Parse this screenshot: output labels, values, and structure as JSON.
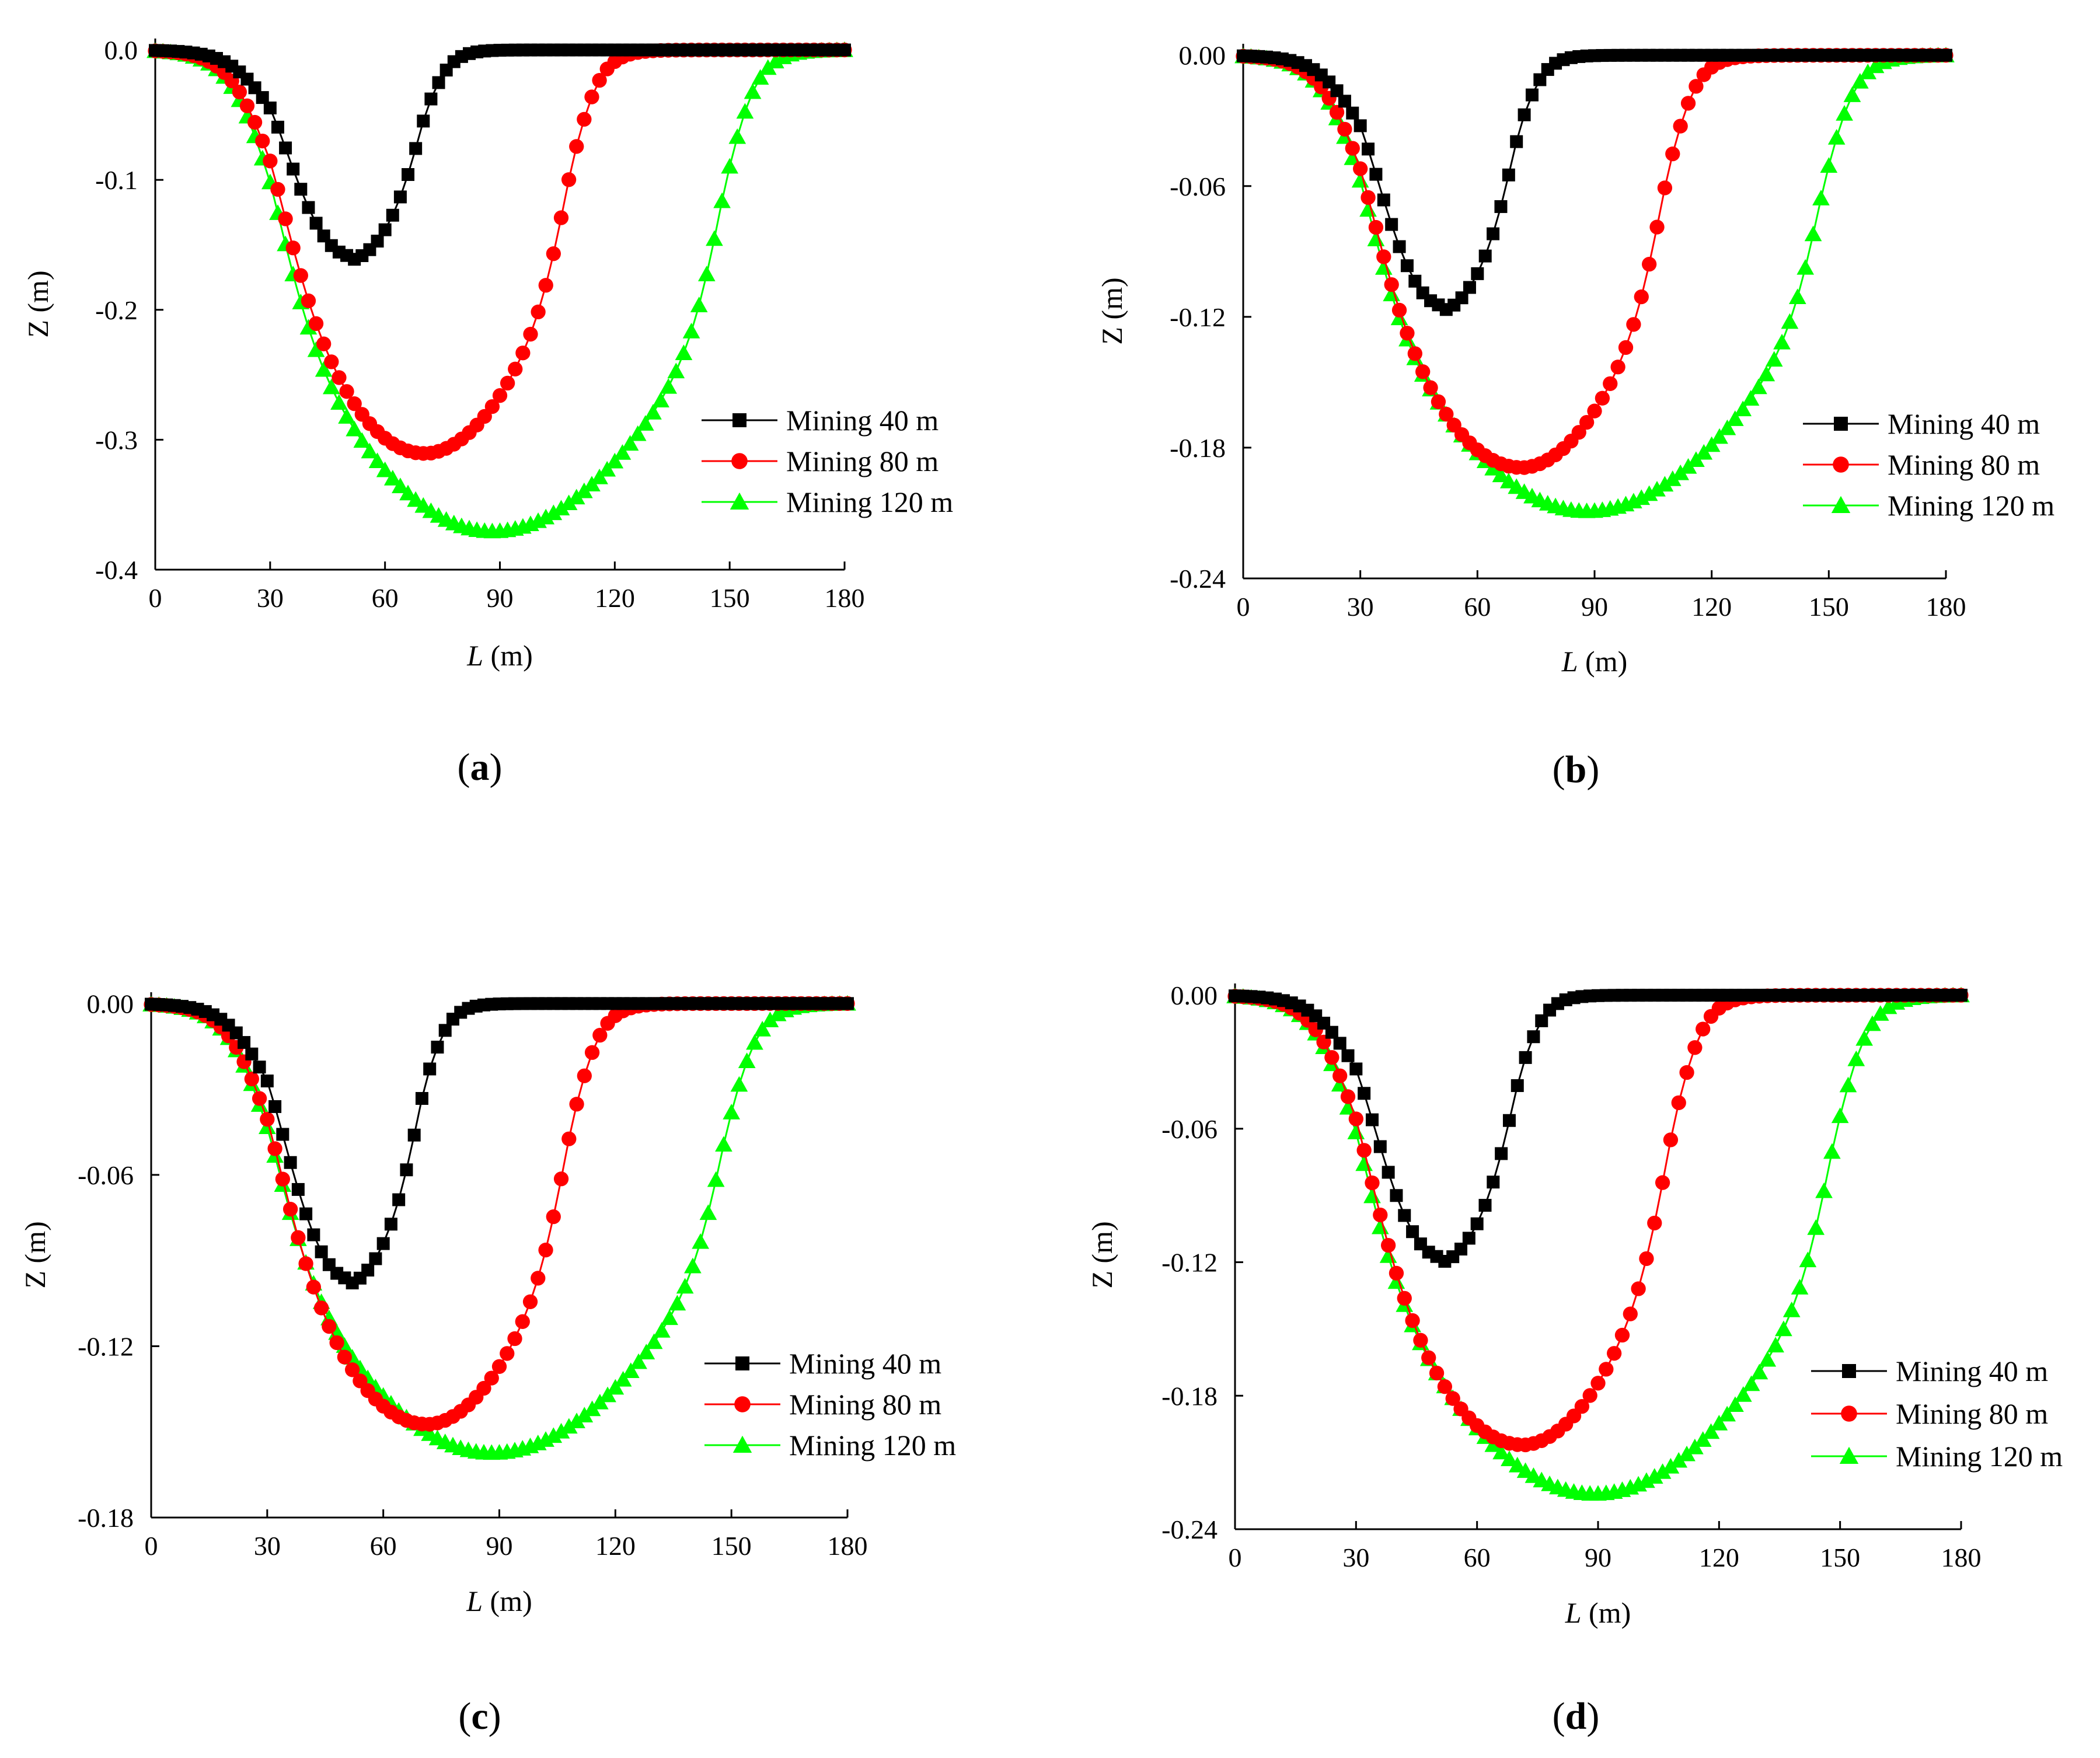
{
  "figure": {
    "panels": [
      {
        "id": "a",
        "label_open": "(",
        "label_letter": "a",
        "label_close": ")"
      },
      {
        "id": "b",
        "label_open": "(",
        "label_letter": "b",
        "label_close": ")"
      },
      {
        "id": "c",
        "label_open": "(",
        "label_letter": "c",
        "label_close": ")"
      },
      {
        "id": "d",
        "label_open": "(",
        "label_letter": "d",
        "label_close": ")"
      }
    ]
  },
  "chart_data": [
    {
      "panel": "a",
      "type": "line",
      "xlabel_italic": "L",
      "xlabel_unit": " (m)",
      "ylabel": "Z (m)",
      "xlim": [
        0,
        180
      ],
      "ylim": [
        -0.4,
        0.0
      ],
      "xticks": [
        0,
        30,
        60,
        90,
        120,
        150,
        180
      ],
      "xtick_labels": [
        "0",
        "30",
        "60",
        "90",
        "120",
        "150",
        "180"
      ],
      "yticks": [
        0.0,
        -0.1,
        -0.2,
        -0.3,
        -0.4
      ],
      "ytick_labels": [
        "0.0",
        "-0.1",
        "-0.2",
        "-0.3",
        "-0.4"
      ],
      "series": [
        {
          "name": "Mining 40 m",
          "color": "#000000",
          "marker": "square",
          "min": -0.163,
          "min_x": 50
        },
        {
          "name": "Mining 80 m",
          "color": "#ff0000",
          "marker": "circle",
          "min": -0.312,
          "min_x": 70
        },
        {
          "name": "Mining 120 m",
          "color": "#00ff00",
          "marker": "triangle",
          "min": -0.372,
          "min_x": 88
        }
      ]
    },
    {
      "panel": "b",
      "type": "line",
      "xlabel_italic": "L",
      "xlabel_unit": " (m)",
      "ylabel": "Z (m)",
      "xlim": [
        0,
        180
      ],
      "ylim": [
        -0.24,
        0.0
      ],
      "xticks": [
        0,
        30,
        60,
        90,
        120,
        150,
        180
      ],
      "xtick_labels": [
        "0",
        "30",
        "60",
        "90",
        "120",
        "150",
        "180"
      ],
      "yticks": [
        0.0,
        -0.06,
        -0.12,
        -0.18,
        -0.24
      ],
      "ytick_labels": [
        "0.00",
        "-0.06",
        "-0.12",
        "-0.18",
        "-0.24"
      ],
      "series": [
        {
          "name": "Mining 40 m",
          "color": "#000000",
          "marker": "square",
          "min": -0.118,
          "min_x": 50
        },
        {
          "name": "Mining 80 m",
          "color": "#ff0000",
          "marker": "circle",
          "min": -0.19,
          "min_x": 71
        },
        {
          "name": "Mining 120 m",
          "color": "#00ff00",
          "marker": "triangle",
          "min": -0.21,
          "min_x": 88
        }
      ]
    },
    {
      "panel": "c",
      "type": "line",
      "xlabel_italic": "L",
      "xlabel_unit": " (m)",
      "ylabel": "Z (m)",
      "xlim": [
        0,
        180
      ],
      "ylim": [
        -0.18,
        0.0
      ],
      "xticks": [
        0,
        30,
        60,
        90,
        120,
        150,
        180
      ],
      "xtick_labels": [
        "0",
        "30",
        "60",
        "90",
        "120",
        "150",
        "180"
      ],
      "yticks": [
        0.0,
        -0.06,
        -0.12,
        -0.18
      ],
      "ytick_labels": [
        "0.00",
        "-0.06",
        "-0.12",
        "-0.18"
      ],
      "series": [
        {
          "name": "Mining 40 m",
          "color": "#000000",
          "marker": "square",
          "min": -0.099,
          "min_x": 50
        },
        {
          "name": "Mining 80 m",
          "color": "#ff0000",
          "marker": "circle",
          "min": -0.148,
          "min_x": 71
        },
        {
          "name": "Mining 120 m",
          "color": "#00ff00",
          "marker": "triangle",
          "min": -0.158,
          "min_x": 88
        }
      ]
    },
    {
      "panel": "d",
      "type": "line",
      "xlabel_italic": "L",
      "xlabel_unit": " (m)",
      "ylabel": "Z (m)",
      "xlim": [
        0,
        180
      ],
      "ylim": [
        -0.24,
        0.0
      ],
      "xticks": [
        0,
        30,
        60,
        90,
        120,
        150,
        180
      ],
      "xtick_labels": [
        "0",
        "30",
        "60",
        "90",
        "120",
        "150",
        "180"
      ],
      "yticks": [
        0.0,
        -0.06,
        -0.12,
        -0.18,
        -0.24
      ],
      "ytick_labels": [
        "0.00",
        "-0.06",
        "-0.12",
        "-0.18",
        "-0.24"
      ],
      "series": [
        {
          "name": "Mining 40 m",
          "color": "#000000",
          "marker": "square",
          "min": -0.121,
          "min_x": 50
        },
        {
          "name": "Mining 80 m",
          "color": "#ff0000",
          "marker": "circle",
          "min": -0.203,
          "min_x": 71
        },
        {
          "name": "Mining 120 m",
          "color": "#00ff00",
          "marker": "triangle",
          "min": -0.225,
          "min_x": 89
        }
      ]
    }
  ]
}
